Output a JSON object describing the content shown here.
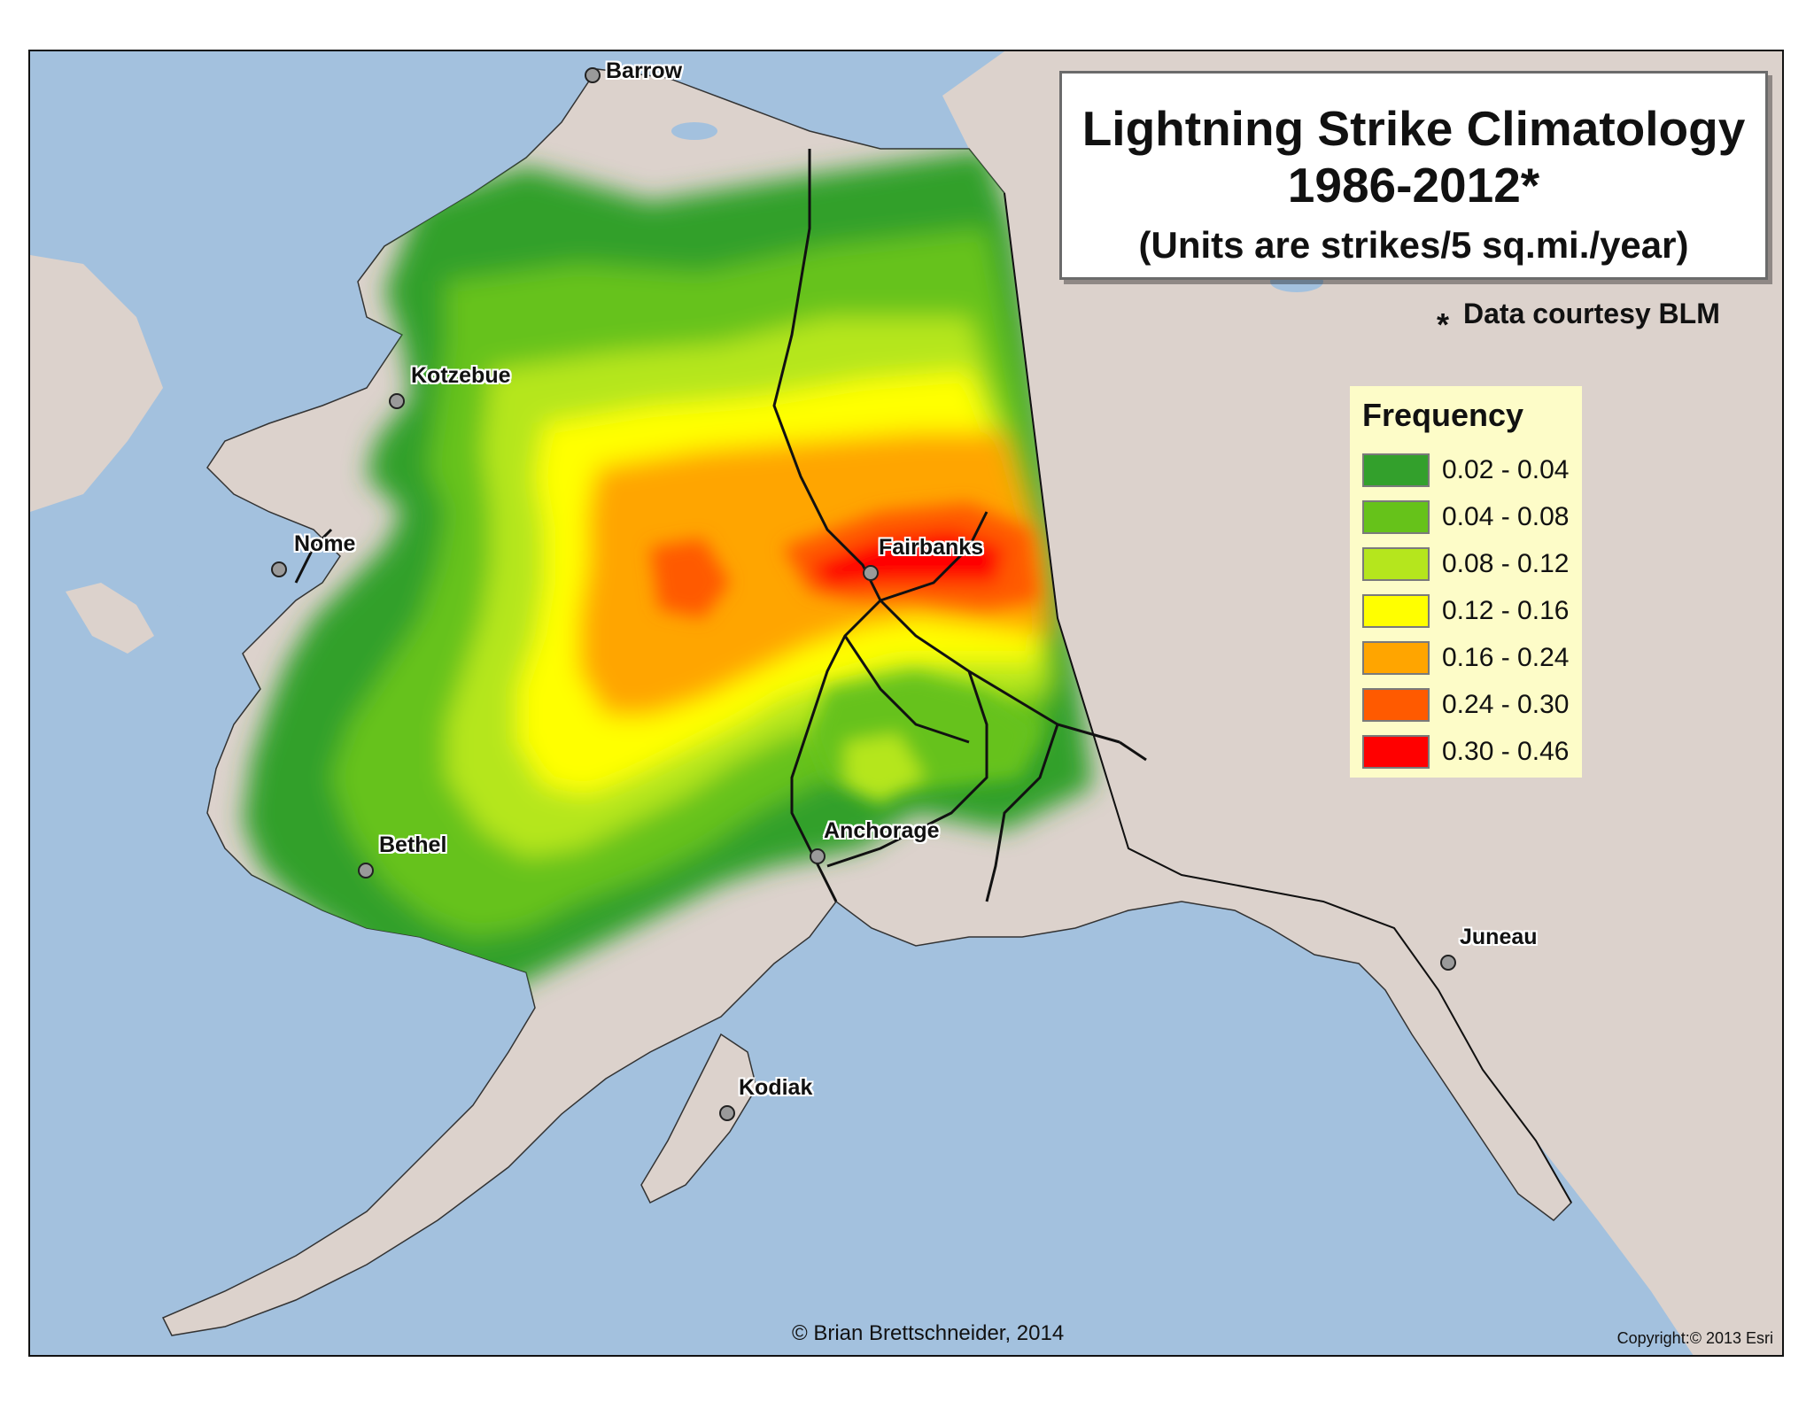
{
  "title": {
    "line1": "Lightning Strike Climatology",
    "line2": "1986-2012*",
    "units": "(Units are strikes/5 sq.mi./year)"
  },
  "courtesy": {
    "marker": "*",
    "text": "Data courtesy BLM"
  },
  "legend": {
    "title": "Frequency",
    "classes": [
      {
        "label": "0.02 - 0.04",
        "color": "#33a02c"
      },
      {
        "label": "0.04 - 0.08",
        "color": "#66c21a"
      },
      {
        "label": "0.08 - 0.12",
        "color": "#b5e61d"
      },
      {
        "label": "0.12 - 0.16",
        "color": "#ffff00"
      },
      {
        "label": "0.16 - 0.24",
        "color": "#ffa500"
      },
      {
        "label": "0.24 - 0.30",
        "color": "#ff5a00"
      },
      {
        "label": "0.30 - 0.46",
        "color": "#ff0000"
      }
    ]
  },
  "cities": [
    {
      "id": "barrow",
      "name": "Barrow"
    },
    {
      "id": "kotzebue",
      "name": "Kotzebue"
    },
    {
      "id": "nome",
      "name": "Nome"
    },
    {
      "id": "fairbanks",
      "name": "Fairbanks"
    },
    {
      "id": "bethel",
      "name": "Bethel"
    },
    {
      "id": "anchorage",
      "name": "Anchorage"
    },
    {
      "id": "juneau",
      "name": "Juneau"
    },
    {
      "id": "kodiak",
      "name": "Kodiak"
    }
  ],
  "credit": "© Brian Brettschneider, 2014",
  "basemap_credit": "Copyright:© 2013 Esri",
  "colors": {
    "ocean": "#a3c1de",
    "land": "#dcd2cc",
    "border": "#111111"
  }
}
